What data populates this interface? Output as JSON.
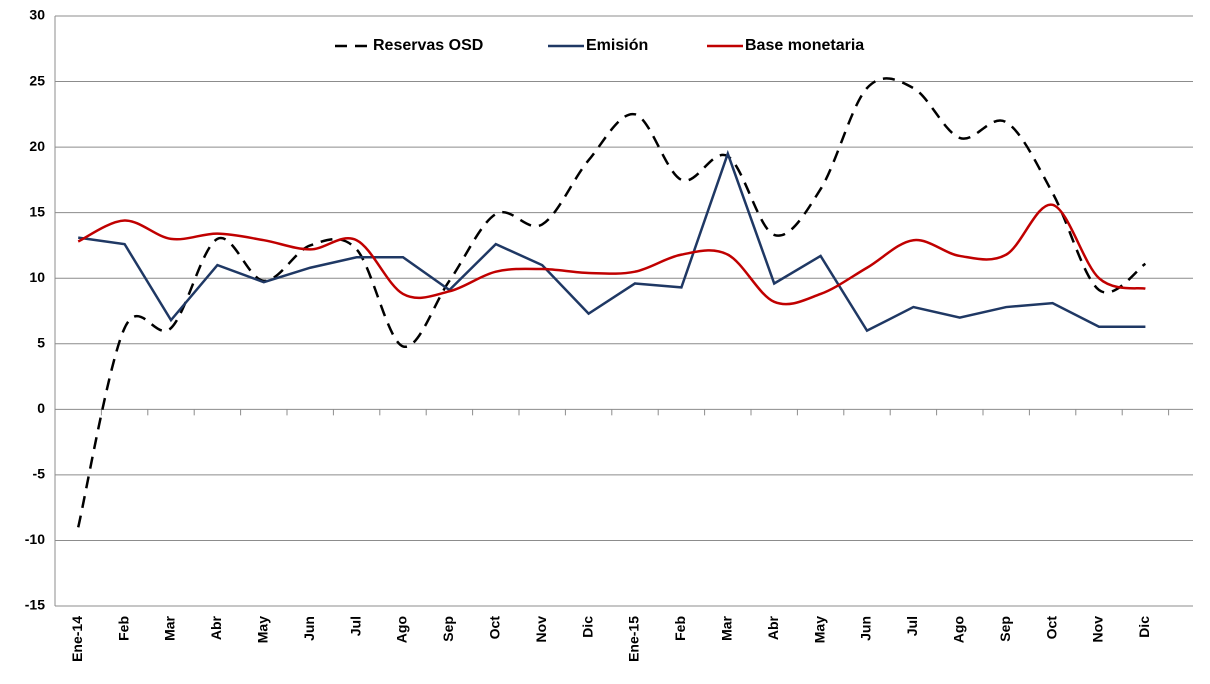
{
  "chart_data": {
    "type": "line",
    "categories": [
      "Ene-14",
      "Feb",
      "Mar",
      "Abr",
      "May",
      "Jun",
      "Jul",
      "Ago",
      "Sep",
      "Oct",
      "Nov",
      "Dic",
      "Ene-15",
      "Feb",
      "Mar",
      "Abr",
      "May",
      "Jun",
      "Jul",
      "Ago",
      "Sep",
      "Oct",
      "Nov",
      "Dic"
    ],
    "series": [
      {
        "name": "Reservas OSD",
        "color": "#000000",
        "dashed": true,
        "smooth": true,
        "values": [
          -9,
          6.2,
          6.2,
          13,
          9.8,
          12.5,
          12.2,
          4.8,
          9.8,
          14.9,
          14.1,
          19,
          22.5,
          17.5,
          19.3,
          13.3,
          16.8,
          24.5,
          24.5,
          20.7,
          21.9,
          16.5,
          9.1,
          11.1
        ]
      },
      {
        "name": "Emisión",
        "color": "#1f3864",
        "dashed": false,
        "smooth": false,
        "values": [
          13.1,
          12.6,
          6.8,
          11,
          9.7,
          10.8,
          11.6,
          11.6,
          9.1,
          12.6,
          11,
          7.3,
          9.6,
          9.3,
          19.5,
          9.6,
          11.7,
          6,
          7.8,
          7,
          7.8,
          8.1,
          6.3,
          6.3
        ]
      },
      {
        "name": "Base monetaria",
        "color": "#c00000",
        "dashed": false,
        "smooth": true,
        "values": [
          12.8,
          14.4,
          13,
          13.4,
          12.9,
          12.2,
          12.9,
          8.8,
          9,
          10.5,
          10.7,
          10.4,
          10.5,
          11.8,
          11.8,
          8.2,
          8.8,
          10.8,
          12.9,
          11.7,
          11.8,
          15.6,
          10,
          9.2
        ]
      }
    ],
    "ylim": [
      -15,
      30
    ],
    "yticks": [
      -15,
      -10,
      -5,
      0,
      5,
      10,
      15,
      20,
      25,
      30
    ],
    "grid": true,
    "legend": "top"
  }
}
